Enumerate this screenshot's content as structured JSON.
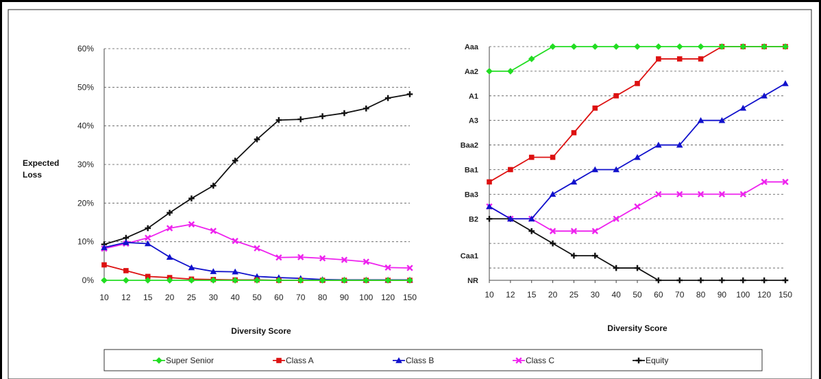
{
  "chart_data": [
    {
      "type": "line",
      "title": "",
      "xlabel": "Diversity Score",
      "ylabel": "Expected Loss",
      "categories": [
        "10",
        "12",
        "15",
        "20",
        "25",
        "30",
        "40",
        "50",
        "60",
        "70",
        "80",
        "90",
        "100",
        "120",
        "150"
      ],
      "y_ticks": [
        "0%",
        "10%",
        "20%",
        "30%",
        "40%",
        "50%",
        "60%"
      ],
      "ylim": [
        0,
        60
      ],
      "grid": "horizontal dashed",
      "series": [
        {
          "name": "Super Senior",
          "color": "#22dd22",
          "marker": "diamond",
          "values": [
            0,
            0,
            0,
            0,
            0,
            0,
            0,
            0,
            0,
            0,
            0,
            0,
            0,
            0,
            0
          ]
        },
        {
          "name": "Class A",
          "color": "#dd1111",
          "marker": "square",
          "values": [
            4.0,
            2.5,
            1.0,
            0.7,
            0.3,
            0.2,
            0.1,
            0.1,
            0,
            0,
            0,
            0,
            0,
            0,
            0
          ]
        },
        {
          "name": "Class B",
          "color": "#1111cc",
          "marker": "triangle",
          "values": [
            8.5,
            9.8,
            9.5,
            6.0,
            3.3,
            2.3,
            2.2,
            1.0,
            0.7,
            0.5,
            0.2,
            0.1,
            0.1,
            0.1,
            0.1
          ]
        },
        {
          "name": "Class C",
          "color": "#ee22ee",
          "marker": "x",
          "values": [
            8.2,
            9.5,
            11.0,
            13.5,
            14.5,
            12.8,
            10.2,
            8.3,
            5.9,
            6.0,
            5.7,
            5.3,
            4.8,
            3.3,
            3.2
          ]
        },
        {
          "name": "Equity",
          "color": "#111111",
          "marker": "plus",
          "values": [
            9.3,
            11.0,
            13.5,
            17.5,
            21.2,
            24.5,
            31.0,
            36.5,
            41.5,
            41.7,
            42.5,
            43.3,
            44.5,
            47.2,
            48.2
          ]
        }
      ]
    },
    {
      "type": "line",
      "title": "",
      "xlabel": "Diversity Score",
      "ylabel": "",
      "categories": [
        "10",
        "12",
        "15",
        "20",
        "25",
        "30",
        "40",
        "50",
        "60",
        "70",
        "80",
        "90",
        "100",
        "120",
        "150"
      ],
      "y_ticks": [
        "NR",
        "Caa1",
        "B2",
        "Ba3",
        "Ba1",
        "Baa2",
        "A3",
        "A1",
        "Aa2",
        "Aaa"
      ],
      "y_tick_index": [
        0,
        2,
        5,
        7,
        9,
        11,
        13,
        15,
        17,
        19
      ],
      "ylim": [
        0,
        19
      ],
      "grid": "horizontal dashed",
      "series": [
        {
          "name": "Super Senior",
          "color": "#22dd22",
          "marker": "diamond",
          "values": [
            17,
            17,
            18,
            19,
            19,
            19,
            19,
            19,
            19,
            19,
            19,
            19,
            19,
            19,
            19
          ]
        },
        {
          "name": "Class A",
          "color": "#dd1111",
          "marker": "square",
          "values": [
            8,
            9,
            10,
            10,
            12,
            14,
            15,
            16,
            18,
            18,
            18,
            19,
            19,
            19,
            19
          ]
        },
        {
          "name": "Class B",
          "color": "#1111cc",
          "marker": "triangle",
          "values": [
            6,
            5,
            5,
            7,
            8,
            9,
            9,
            10,
            11,
            11,
            13,
            13,
            14,
            15,
            16
          ]
        },
        {
          "name": "Class C",
          "color": "#ee22ee",
          "marker": "x",
          "values": [
            6,
            5,
            5,
            4,
            4,
            4,
            5,
            6,
            7,
            7,
            7,
            7,
            7,
            8,
            8
          ]
        },
        {
          "name": "Equity",
          "color": "#111111",
          "marker": "plus",
          "values": [
            5,
            5,
            4,
            3,
            2,
            2,
            1,
            1,
            0,
            0,
            0,
            0,
            0,
            0,
            0
          ]
        }
      ]
    }
  ],
  "legend": {
    "placement": "bottom",
    "items": [
      "Super Senior",
      "Class A",
      "Class B",
      "Class C",
      "Equity"
    ]
  }
}
